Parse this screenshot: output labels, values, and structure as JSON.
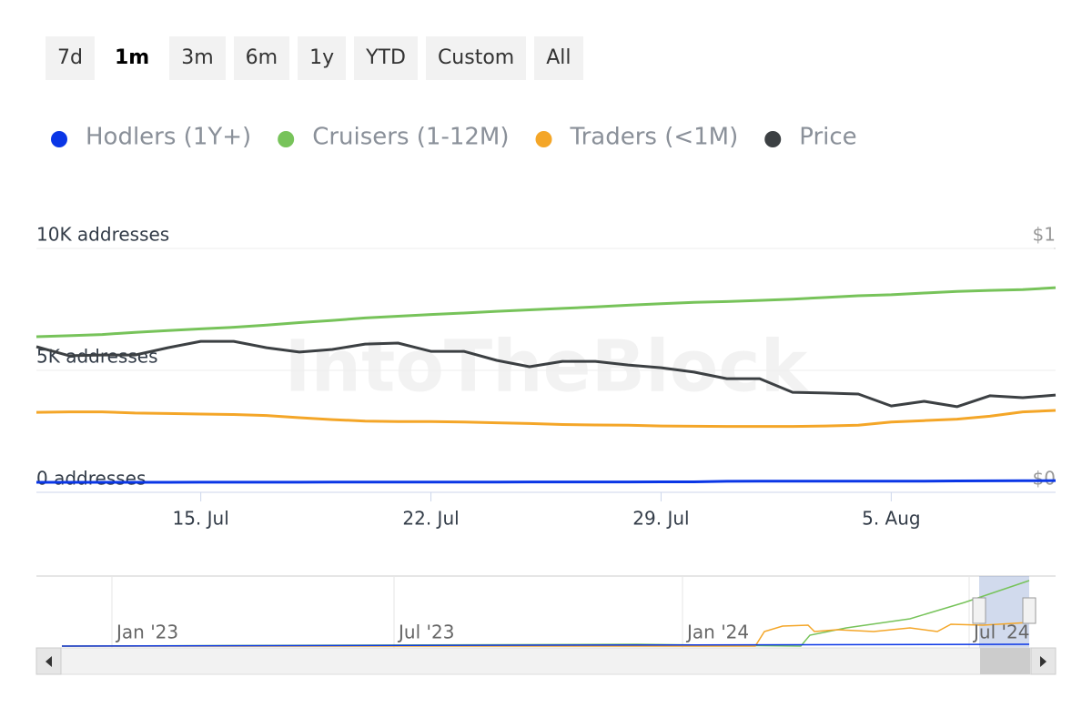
{
  "chart_data": {
    "type": "line",
    "range_buttons": [
      {
        "label": "7d",
        "selected": false
      },
      {
        "label": "1m",
        "selected": true
      },
      {
        "label": "3m",
        "selected": false
      },
      {
        "label": "6m",
        "selected": false
      },
      {
        "label": "1y",
        "selected": false
      },
      {
        "label": "YTD",
        "selected": false
      },
      {
        "label": "Custom",
        "selected": false
      },
      {
        "label": "All",
        "selected": false
      }
    ],
    "watermark": "IntoTheBlock",
    "categories": [
      null,
      null,
      null,
      null,
      null,
      "15. Jul",
      null,
      null,
      null,
      null,
      null,
      null,
      "22. Jul",
      null,
      null,
      null,
      null,
      null,
      null,
      "29. Jul",
      null,
      null,
      null,
      null,
      null,
      null,
      "5. Aug",
      null,
      null,
      null,
      null,
      null
    ],
    "series": [
      {
        "name": "Hodlers (1Y+)",
        "color": "#0a36e6",
        "axis": "y",
        "values": [
          410,
          410,
          410,
          410,
          410,
          415,
          415,
          415,
          415,
          420,
          420,
          420,
          420,
          420,
          420,
          425,
          425,
          425,
          425,
          430,
          430,
          450,
          455,
          455,
          455,
          460,
          460,
          460,
          465,
          470,
          475,
          480
        ]
      },
      {
        "name": "Cruisers (1-12M)",
        "color": "#77c35a",
        "axis": "y",
        "values": [
          6380,
          6420,
          6470,
          6560,
          6630,
          6700,
          6770,
          6860,
          6960,
          7050,
          7150,
          7220,
          7290,
          7350,
          7420,
          7480,
          7540,
          7600,
          7670,
          7730,
          7790,
          7820,
          7870,
          7920,
          7990,
          8060,
          8100,
          8170,
          8240,
          8280,
          8310,
          8390
        ]
      },
      {
        "name": "Traders (<1M)",
        "color": "#f4a628",
        "axis": "y",
        "values": [
          3280,
          3300,
          3300,
          3250,
          3230,
          3210,
          3190,
          3150,
          3060,
          2980,
          2920,
          2900,
          2900,
          2880,
          2850,
          2820,
          2780,
          2760,
          2750,
          2720,
          2710,
          2700,
          2700,
          2700,
          2720,
          2750,
          2880,
          2940,
          3000,
          3120,
          3300,
          3360
        ]
      },
      {
        "name": "Price",
        "color": "#3c4043",
        "axis": "y2",
        "values": [
          0.597,
          0.56,
          0.563,
          0.563,
          0.593,
          0.619,
          0.619,
          0.593,
          0.575,
          0.586,
          0.608,
          0.612,
          0.578,
          0.578,
          0.541,
          0.515,
          0.537,
          0.537,
          0.522,
          0.511,
          0.493,
          0.466,
          0.466,
          0.41,
          0.407,
          0.403,
          0.354,
          0.373,
          0.351,
          0.396,
          0.388,
          0.399
        ]
      }
    ],
    "ylim": [
      0,
      10000
    ],
    "yticks": [
      {
        "value": 0,
        "label": "0 addresses"
      },
      {
        "value": 5000,
        "label": "5K addresses"
      },
      {
        "value": 10000,
        "label": "10K addresses"
      }
    ],
    "y2lim": [
      0,
      1
    ],
    "y2ticks": [
      {
        "value": 0,
        "label": "$0"
      },
      {
        "value": 1,
        "label": "$1"
      }
    ],
    "grid": true,
    "navigator": {
      "labels": [
        "Jan '23",
        "Jul '23",
        "Jan '24",
        "Jul '24"
      ]
    }
  }
}
